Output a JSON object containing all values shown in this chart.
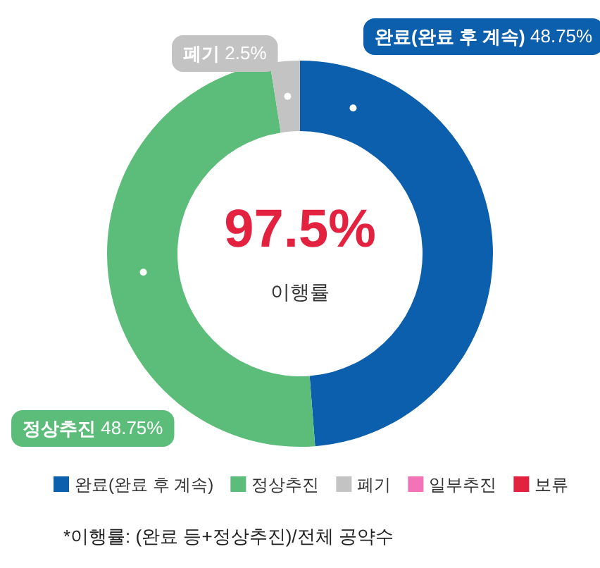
{
  "chart_data": {
    "type": "donut",
    "categories": [
      "완료(완료 후 계속)",
      "정상추진",
      "폐기",
      "일부추진",
      "보류"
    ],
    "values": [
      48.75,
      48.75,
      2.5,
      0,
      0
    ],
    "colors": [
      "#0b5fad",
      "#5cbd7a",
      "#c3c3c3",
      "#f472b6",
      "#e3223f"
    ],
    "value_labels": [
      "48.75%",
      "48.75%",
      "2.5%",
      null,
      null
    ],
    "annotations": [
      "97.5%",
      "이행률",
      "*이행률: (완료 등+정상추진)/전체 공약수"
    ],
    "legend": "bottom"
  }
}
